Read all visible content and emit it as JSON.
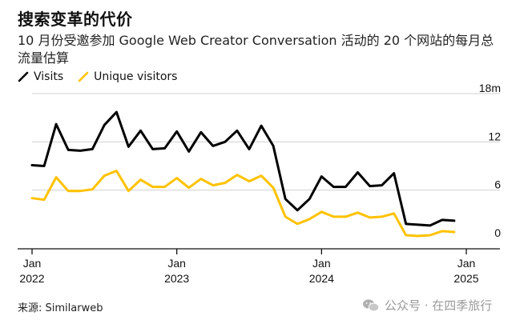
{
  "chart_data": {
    "type": "line",
    "title": "搜索变革的代价",
    "subtitle": "10 月份受邀参加 Google Web Creator Conversation 活动的 20 个网站的每月总流量估算",
    "xlabel": "",
    "ylabel": "",
    "ylim": [
      0,
      18
    ],
    "y_ticks": [
      0,
      6,
      12
    ],
    "y_top_label": "18m",
    "x_ticks": [
      {
        "month_index": 0,
        "line1": "Jan",
        "line2": "2022"
      },
      {
        "month_index": 12,
        "line1": "Jan",
        "line2": "2023"
      },
      {
        "month_index": 24,
        "line1": "Jan",
        "line2": "2024"
      },
      {
        "month_index": 36,
        "line1": "Jan",
        "line2": "2025"
      }
    ],
    "series": [
      {
        "name": "Visits",
        "color": "#000000",
        "values": [
          9.1,
          9.0,
          14.2,
          11.0,
          10.9,
          11.1,
          14.1,
          15.7,
          11.4,
          13.4,
          11.1,
          11.2,
          13.3,
          10.8,
          13.2,
          11.5,
          12.0,
          13.4,
          11.1,
          14.0,
          11.5,
          4.9,
          3.5,
          4.9,
          7.7,
          6.4,
          6.4,
          8.2,
          6.5,
          6.6,
          8.1,
          1.8,
          1.7,
          1.6,
          2.3,
          2.2
        ]
      },
      {
        "name": "Unique visitors",
        "color": "#ffc200",
        "values": [
          5.0,
          4.8,
          7.6,
          5.9,
          5.9,
          6.1,
          7.8,
          8.4,
          5.9,
          7.3,
          6.4,
          6.4,
          7.5,
          6.3,
          7.4,
          6.6,
          6.9,
          7.9,
          7.1,
          7.8,
          6.3,
          2.7,
          1.8,
          2.4,
          3.3,
          2.7,
          2.7,
          3.2,
          2.6,
          2.7,
          3.1,
          0.4,
          0.3,
          0.4,
          0.9,
          0.8
        ]
      }
    ],
    "x_start": "2022-01",
    "x_unit": "month"
  },
  "source_label": "来源: Similarweb",
  "watermark_text": "公众号 · 在四季旅行"
}
